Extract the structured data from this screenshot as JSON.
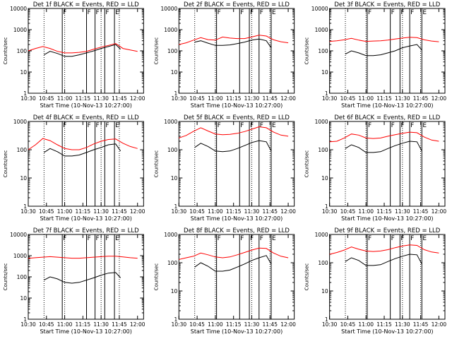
{
  "figure": {
    "xlabel_all": "Start Time (10-Nov-13 10:27:00)",
    "ylabel_all": "Counts/sec"
  },
  "colors": {
    "events": "#000000",
    "lld": "#ff0000",
    "axes": "#000000"
  },
  "chart_data": [
    {
      "type": "line",
      "title": "Det 1f BLACK = Events, RED = LLD",
      "xlabel": "Start Time (10-Nov-13 10:27:00)",
      "ylabel": "Counts/sec",
      "yscale": "log",
      "ylim": [
        1,
        10000
      ],
      "yticks": [
        "1",
        "10",
        "100",
        "1000",
        "10000"
      ],
      "xlim": [
        "10:30",
        "12:05"
      ],
      "xticks": [
        "10:30",
        "10:45",
        "11:00",
        "11:15",
        "11:30",
        "11:45",
        "12:00"
      ],
      "flag_labels": [
        "F",
        "F",
        "F",
        "F",
        "E"
      ],
      "flags_time": [
        "10:58",
        "11:18",
        "11:25",
        "11:33",
        "11:41"
      ],
      "dotted_time": [
        "10:43",
        "11:00",
        "11:30",
        "11:45"
      ],
      "series": [
        {
          "color": "#ff0000",
          "x": [
            "10:30",
            "10:36",
            "10:42",
            "10:48",
            "10:54",
            "11:00",
            "11:06",
            "11:12",
            "11:18",
            "11:24",
            "11:30",
            "11:36",
            "11:42",
            "11:48",
            "11:54",
            "12:00"
          ],
          "y": [
            100,
            130,
            160,
            130,
            95,
            80,
            80,
            85,
            95,
            120,
            150,
            180,
            220,
            130,
            110,
            95
          ]
        },
        {
          "color": "#000000",
          "x": [
            "10:43",
            "10:48",
            "10:54",
            "11:00",
            "11:06",
            "11:12",
            "11:18",
            "11:24",
            "11:30",
            "11:36",
            "11:42",
            "11:46"
          ],
          "y": [
            65,
            95,
            75,
            55,
            55,
            65,
            80,
            100,
            130,
            160,
            200,
            120
          ]
        }
      ]
    },
    {
      "type": "line",
      "title": "Det 2f BLACK = Events, RED = LLD",
      "xlabel": "Start Time (10-Nov-13 10:27:00)",
      "ylabel": "Counts/sec",
      "yscale": "log",
      "ylim": [
        1,
        10000
      ],
      "yticks": [
        "1",
        "10",
        "100",
        "1000",
        "10000"
      ],
      "xlim": [
        "10:30",
        "12:05"
      ],
      "xticks": [
        "10:30",
        "10:45",
        "11:00",
        "11:15",
        "11:30",
        "11:45",
        "12:00"
      ],
      "flag_labels": [
        "F",
        "F",
        "F",
        "F",
        "E"
      ],
      "flags_time": [
        "11:01",
        "11:20",
        "11:28",
        "11:36",
        "11:46"
      ],
      "dotted_time": [
        "10:43",
        "11:00",
        "11:30",
        "11:45"
      ],
      "series": [
        {
          "color": "#ff0000",
          "x": [
            "10:30",
            "10:36",
            "10:42",
            "10:48",
            "10:54",
            "11:00",
            "11:06",
            "11:12",
            "11:18",
            "11:24",
            "11:30",
            "11:36",
            "11:42",
            "11:48",
            "11:54",
            "12:00"
          ],
          "y": [
            200,
            240,
            320,
            420,
            340,
            320,
            450,
            400,
            380,
            380,
            450,
            550,
            500,
            330,
            270,
            240
          ]
        },
        {
          "color": "#000000",
          "x": [
            "10:43",
            "10:48",
            "10:54",
            "11:00",
            "11:06",
            "11:12",
            "11:18",
            "11:24",
            "11:30",
            "11:36",
            "11:42",
            "11:46"
          ],
          "y": [
            260,
            300,
            230,
            180,
            180,
            190,
            220,
            260,
            320,
            360,
            300,
            140
          ]
        }
      ]
    },
    {
      "type": "line",
      "title": "Det 3f BLACK = Events, RED = LLD",
      "xlabel": "Start Time (10-Nov-13 10:27:00)",
      "ylabel": "Counts/sec",
      "yscale": "log",
      "ylim": [
        1,
        10000
      ],
      "yticks": [
        "1",
        "10",
        "100",
        "1000",
        "10000"
      ],
      "xlim": [
        "10:30",
        "12:05"
      ],
      "xticks": [
        "10:30",
        "10:45",
        "11:00",
        "11:15",
        "11:30",
        "11:45",
        "12:00"
      ],
      "flag_labels": [
        "F",
        "F",
        "F",
        "F",
        "E"
      ],
      "flags_time": [
        "11:01",
        "11:20",
        "11:28",
        "11:36",
        "11:46"
      ],
      "dotted_time": [
        "10:43",
        "11:00",
        "11:30",
        "11:45"
      ],
      "series": [
        {
          "color": "#ff0000",
          "x": [
            "10:30",
            "10:36",
            "10:42",
            "10:48",
            "10:54",
            "11:00",
            "11:06",
            "11:12",
            "11:18",
            "11:24",
            "11:30",
            "11:36",
            "11:42",
            "11:48",
            "11:54",
            "12:00"
          ],
          "y": [
            280,
            300,
            330,
            390,
            320,
            280,
            290,
            300,
            320,
            360,
            400,
            440,
            420,
            330,
            290,
            270
          ]
        },
        {
          "color": "#000000",
          "x": [
            "10:43",
            "10:48",
            "10:54",
            "11:00",
            "11:06",
            "11:12",
            "11:18",
            "11:24",
            "11:30",
            "11:36",
            "11:42",
            "11:46"
          ],
          "y": [
            70,
            100,
            80,
            60,
            60,
            65,
            80,
            100,
            140,
            170,
            200,
            110
          ]
        }
      ]
    },
    {
      "type": "line",
      "title": "Det 4f BLACK = Events, RED = LLD",
      "xlabel": "Start Time (10-Nov-13 10:27:00)",
      "ylabel": "Counts/sec",
      "yscale": "log",
      "ylim": [
        1,
        1000
      ],
      "yticks": [
        "1",
        "10",
        "100",
        "1000"
      ],
      "xlim": [
        "10:30",
        "12:05"
      ],
      "xticks": [
        "10:30",
        "10:45",
        "11:00",
        "11:15",
        "11:30",
        "11:45",
        "12:00"
      ],
      "flag_labels": [
        "F",
        "F",
        "F",
        "F",
        "E"
      ],
      "flags_time": [
        "10:58",
        "11:18",
        "11:25",
        "11:33",
        "11:41"
      ],
      "dotted_time": [
        "10:43",
        "11:00",
        "11:30",
        "11:45"
      ],
      "series": [
        {
          "color": "#ff0000",
          "x": [
            "10:30",
            "10:36",
            "10:42",
            "10:48",
            "10:54",
            "11:00",
            "11:06",
            "11:12",
            "11:18",
            "11:24",
            "11:30",
            "11:36",
            "11:42",
            "11:48",
            "11:54",
            "12:00"
          ],
          "y": [
            100,
            150,
            250,
            210,
            150,
            110,
            100,
            100,
            120,
            160,
            200,
            230,
            240,
            170,
            130,
            110
          ]
        },
        {
          "color": "#000000",
          "x": [
            "10:43",
            "10:48",
            "10:54",
            "11:00",
            "11:06",
            "11:12",
            "11:18",
            "11:24",
            "11:30",
            "11:36",
            "11:42",
            "11:46"
          ],
          "y": [
            80,
            110,
            85,
            60,
            60,
            65,
            80,
            100,
            120,
            150,
            160,
            90
          ]
        }
      ]
    },
    {
      "type": "line",
      "title": "Det 5f BLACK = Events, RED = LLD",
      "xlabel": "Start Time (10-Nov-13 10:27:00)",
      "ylabel": "Counts/sec",
      "yscale": "log",
      "ylim": [
        1,
        1000
      ],
      "yticks": [
        "1",
        "10",
        "100",
        "1000"
      ],
      "xlim": [
        "10:30",
        "12:05"
      ],
      "xticks": [
        "10:30",
        "10:45",
        "11:00",
        "11:15",
        "11:30",
        "11:45",
        "12:00"
      ],
      "flag_labels": [
        "F",
        "F",
        "F",
        "F",
        "E"
      ],
      "flags_time": [
        "11:01",
        "11:20",
        "11:28",
        "11:36",
        "11:46"
      ],
      "dotted_time": [
        "10:43",
        "11:00",
        "11:30",
        "11:45"
      ],
      "series": [
        {
          "color": "#ff0000",
          "x": [
            "10:30",
            "10:36",
            "10:42",
            "10:48",
            "10:54",
            "11:00",
            "11:06",
            "11:12",
            "11:18",
            "11:24",
            "11:30",
            "11:36",
            "11:42",
            "11:48",
            "11:54",
            "12:00"
          ],
          "y": [
            260,
            320,
            450,
            600,
            460,
            360,
            340,
            350,
            380,
            440,
            530,
            650,
            600,
            420,
            330,
            300
          ]
        },
        {
          "color": "#000000",
          "x": [
            "10:43",
            "10:48",
            "10:54",
            "11:00",
            "11:06",
            "11:12",
            "11:18",
            "11:24",
            "11:30",
            "11:36",
            "11:42",
            "11:46"
          ],
          "y": [
            120,
            170,
            130,
            90,
            85,
            90,
            110,
            140,
            180,
            210,
            190,
            90
          ]
        }
      ]
    },
    {
      "type": "line",
      "title": "Det 6f BLACK = Events, RED = LLD",
      "xlabel": "Start Time (10-Nov-13 10:27:00)",
      "ylabel": "Counts/sec",
      "yscale": "log",
      "ylim": [
        1,
        1000
      ],
      "yticks": [
        "1",
        "10",
        "100",
        "1000"
      ],
      "xlim": [
        "10:30",
        "12:05"
      ],
      "xticks": [
        "10:30",
        "10:45",
        "11:00",
        "11:15",
        "11:30",
        "11:45",
        "12:00"
      ],
      "flag_labels": [
        "F",
        "F",
        "F",
        "F",
        "E"
      ],
      "flags_time": [
        "11:01",
        "11:20",
        "11:28",
        "11:36",
        "11:46"
      ],
      "dotted_time": [
        "10:43",
        "11:00",
        "11:30",
        "11:45"
      ],
      "series": [
        {
          "color": "#ff0000",
          "x": [
            "10:30",
            "10:36",
            "10:42",
            "10:48",
            "10:54",
            "11:00",
            "11:06",
            "11:12",
            "11:18",
            "11:24",
            "11:30",
            "11:36",
            "11:42",
            "11:48",
            "11:54",
            "12:00"
          ],
          "y": [
            190,
            200,
            260,
            360,
            330,
            260,
            250,
            260,
            300,
            340,
            380,
            420,
            400,
            280,
            220,
            200
          ]
        },
        {
          "color": "#000000",
          "x": [
            "10:43",
            "10:48",
            "10:54",
            "11:00",
            "11:06",
            "11:12",
            "11:18",
            "11:24",
            "11:30",
            "11:36",
            "11:42",
            "11:46"
          ],
          "y": [
            110,
            150,
            120,
            80,
            80,
            85,
            110,
            140,
            170,
            200,
            190,
            90
          ]
        }
      ]
    },
    {
      "type": "line",
      "title": "Det 7f BLACK = Events, RED = LLD",
      "xlabel": "Start Time (10-Nov-13 10:27:00)",
      "ylabel": "Counts/sec",
      "yscale": "log",
      "ylim": [
        1,
        10000
      ],
      "yticks": [
        "1",
        "10",
        "100",
        "1000",
        "10000"
      ],
      "xlim": [
        "10:30",
        "12:05"
      ],
      "xticks": [
        "10:30",
        "10:45",
        "11:00",
        "11:15",
        "11:30",
        "11:45",
        "12:00"
      ],
      "flag_labels": [
        "F",
        "F",
        "F",
        "F",
        "E"
      ],
      "flags_time": [
        "10:58",
        "11:18",
        "11:25",
        "11:33",
        "11:41"
      ],
      "dotted_time": [
        "10:43",
        "11:00",
        "11:30",
        "11:45"
      ],
      "series": [
        {
          "color": "#ff0000",
          "x": [
            "10:30",
            "10:36",
            "10:42",
            "10:48",
            "10:54",
            "11:00",
            "11:06",
            "11:12",
            "11:18",
            "11:24",
            "11:30",
            "11:36",
            "11:42",
            "11:48",
            "11:54",
            "12:00"
          ],
          "y": [
            750,
            800,
            850,
            900,
            850,
            800,
            760,
            760,
            800,
            850,
            900,
            950,
            950,
            870,
            800,
            760
          ]
        },
        {
          "color": "#000000",
          "x": [
            "10:43",
            "10:48",
            "10:54",
            "11:00",
            "11:06",
            "11:12",
            "11:18",
            "11:24",
            "11:30",
            "11:36",
            "11:42",
            "11:46"
          ],
          "y": [
            70,
            100,
            80,
            55,
            50,
            55,
            70,
            90,
            120,
            150,
            160,
            90
          ]
        }
      ]
    },
    {
      "type": "line",
      "title": "Det 8f BLACK = Events, RED = LLD",
      "xlabel": "Start Time (10-Nov-13 10:27:00)",
      "ylabel": "Counts/sec",
      "yscale": "log",
      "ylim": [
        1,
        1000
      ],
      "yticks": [
        "1",
        "10",
        "100",
        "1000"
      ],
      "xlim": [
        "10:30",
        "12:05"
      ],
      "xticks": [
        "10:30",
        "10:45",
        "11:00",
        "11:15",
        "11:30",
        "11:45",
        "12:00"
      ],
      "flag_labels": [
        "F",
        "F",
        "F",
        "F",
        "E"
      ],
      "flags_time": [
        "11:01",
        "11:20",
        "11:28",
        "11:36",
        "11:46"
      ],
      "dotted_time": [
        "10:43",
        "11:00",
        "11:30",
        "11:45"
      ],
      "series": [
        {
          "color": "#ff0000",
          "x": [
            "10:30",
            "10:36",
            "10:42",
            "10:48",
            "10:54",
            "11:00",
            "11:06",
            "11:12",
            "11:18",
            "11:24",
            "11:30",
            "11:36",
            "11:42",
            "11:48",
            "11:54",
            "12:00"
          ],
          "y": [
            130,
            150,
            170,
            220,
            190,
            160,
            150,
            160,
            190,
            230,
            280,
            330,
            320,
            220,
            170,
            150
          ]
        },
        {
          "color": "#000000",
          "x": [
            "10:43",
            "10:48",
            "10:54",
            "11:00",
            "11:06",
            "11:12",
            "11:18",
            "11:24",
            "11:30",
            "11:36",
            "11:42",
            "11:46"
          ],
          "y": [
            70,
            100,
            75,
            50,
            50,
            55,
            70,
            90,
            120,
            150,
            180,
            90
          ]
        }
      ]
    },
    {
      "type": "line",
      "title": "Det 9f BLACK = Events, RED = LLD",
      "xlabel": "Start Time (10-Nov-13 10:27:00)",
      "ylabel": "Counts/sec",
      "yscale": "log",
      "ylim": [
        1,
        1000
      ],
      "yticks": [
        "1",
        "10",
        "100",
        "1000"
      ],
      "xlim": [
        "10:30",
        "12:05"
      ],
      "xticks": [
        "10:30",
        "10:45",
        "11:00",
        "11:15",
        "11:30",
        "11:45",
        "12:00"
      ],
      "flag_labels": [
        "F",
        "F",
        "F",
        "F",
        "E"
      ],
      "flags_time": [
        "11:01",
        "11:20",
        "11:28",
        "11:36",
        "11:46"
      ],
      "dotted_time": [
        "10:43",
        "11:00",
        "11:30",
        "11:45"
      ],
      "series": [
        {
          "color": "#ff0000",
          "x": [
            "10:30",
            "10:36",
            "10:42",
            "10:48",
            "10:54",
            "11:00",
            "11:06",
            "11:12",
            "11:18",
            "11:24",
            "11:30",
            "11:36",
            "11:42",
            "11:48",
            "11:54",
            "12:00"
          ],
          "y": [
            200,
            230,
            280,
            360,
            300,
            260,
            250,
            260,
            290,
            340,
            390,
            430,
            410,
            290,
            240,
            220
          ]
        },
        {
          "color": "#000000",
          "x": [
            "10:43",
            "10:48",
            "10:54",
            "11:00",
            "11:06",
            "11:12",
            "11:18",
            "11:24",
            "11:30",
            "11:36",
            "11:42",
            "11:46"
          ],
          "y": [
            110,
            150,
            120,
            80,
            80,
            85,
            110,
            140,
            170,
            200,
            190,
            90
          ]
        }
      ]
    }
  ]
}
